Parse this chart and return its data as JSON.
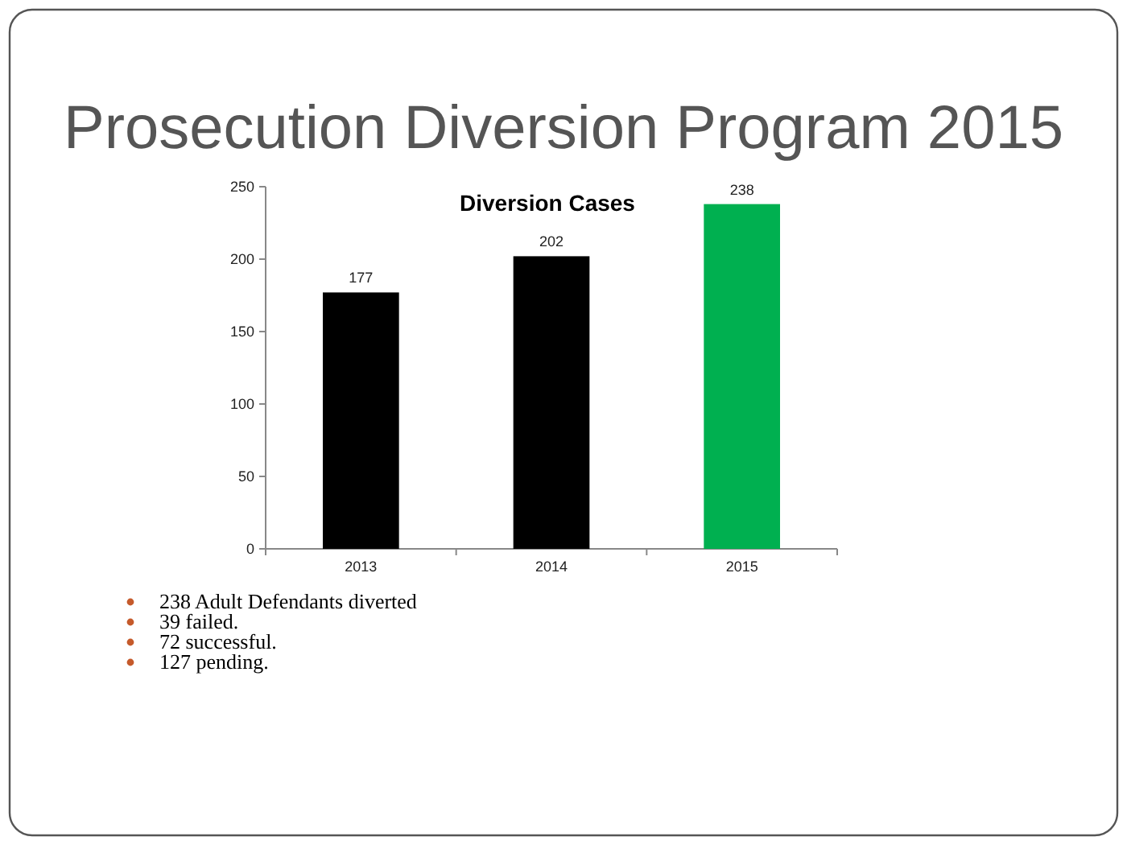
{
  "chart_data": {
    "type": "bar",
    "title": "Prosecution Diversion Program 2015",
    "subtitle": "Diversion Cases",
    "categories": [
      "2013",
      "2014",
      "2015"
    ],
    "values": [
      177,
      202,
      238
    ],
    "colors": [
      "#000000",
      "#000000",
      "#00b050"
    ],
    "ylim": [
      0,
      250
    ],
    "yticks": [
      0,
      50,
      100,
      150,
      200,
      250
    ],
    "data_labels": true,
    "grid": false,
    "annotations": [
      "238 Adult Defendants diverted",
      "39 failed.",
      "72 successful.",
      "127 pending."
    ]
  }
}
